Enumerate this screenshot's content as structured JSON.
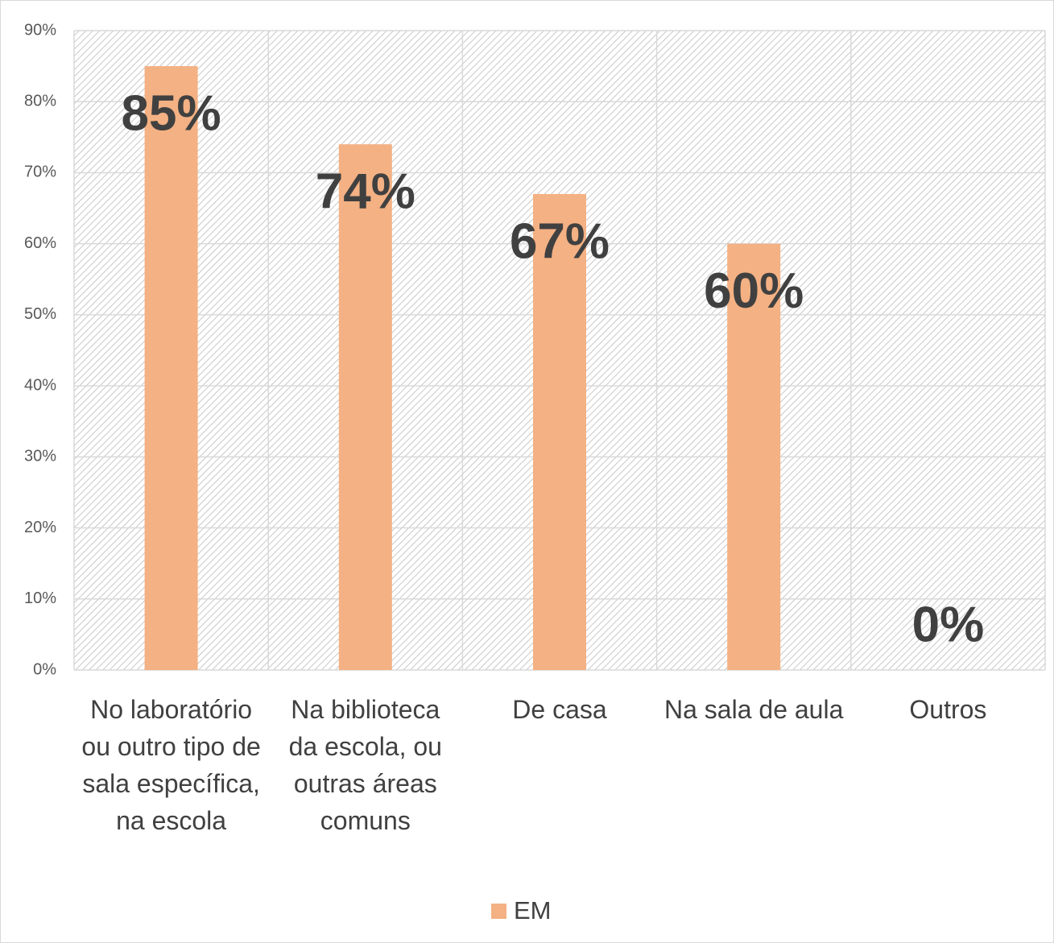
{
  "chart_data": {
    "type": "bar",
    "categories": [
      "No laboratório ou outro tipo de sala específica, na escola",
      "Na biblioteca da escola, ou outras áreas comuns",
      "De casa",
      "Na sala de aula",
      "Outros"
    ],
    "series": [
      {
        "name": "EM",
        "color": "#f4b183",
        "values": [
          85,
          74,
          67,
          60,
          0
        ],
        "value_labels": [
          "85%",
          "74%",
          "67%",
          "60%",
          "0%"
        ]
      }
    ],
    "ylim": [
      0,
      90
    ],
    "yticks": [
      {
        "value": 0,
        "label": "0%"
      },
      {
        "value": 10,
        "label": "10%"
      },
      {
        "value": 20,
        "label": "20%"
      },
      {
        "value": 30,
        "label": "30%"
      },
      {
        "value": 40,
        "label": "40%"
      },
      {
        "value": 50,
        "label": "50%"
      },
      {
        "value": 60,
        "label": "60%"
      },
      {
        "value": 70,
        "label": "70%"
      },
      {
        "value": 80,
        "label": "80%"
      },
      {
        "value": 90,
        "label": "90%"
      }
    ],
    "grid": true,
    "legend": "bottom"
  }
}
